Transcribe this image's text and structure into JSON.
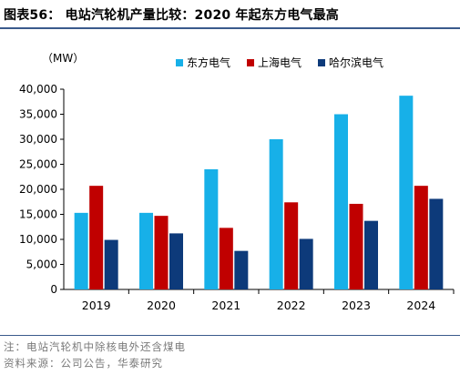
{
  "title": "图表56： 电站汽轮机产量比较：2020 年起东方电气最高",
  "unit_label": "（MW）",
  "notes": {
    "note1": "注：电站汽轮机中除核电外还含煤电",
    "note2": "资料来源：公司公告，华泰研究"
  },
  "colors": {
    "dongfang": "#17b0e8",
    "shanghai": "#c00000",
    "harbin": "#0d3a7a",
    "rule": "#3a5a8c"
  },
  "chart_data": {
    "type": "bar",
    "categories": [
      "2019",
      "2020",
      "2021",
      "2022",
      "2023",
      "2024"
    ],
    "series": [
      {
        "name": "东方电气",
        "values": [
          15300,
          15300,
          24000,
          30000,
          35000,
          38700
        ]
      },
      {
        "name": "上海电气",
        "values": [
          20700,
          14700,
          12300,
          17400,
          17100,
          20700
        ]
      },
      {
        "name": "哈尔滨电气",
        "values": [
          9900,
          11200,
          7700,
          10100,
          13700,
          18100
        ]
      }
    ],
    "yticks": [
      "0",
      "5,000",
      "10,000",
      "15,000",
      "20,000",
      "25,000",
      "30,000",
      "35,000",
      "40,000"
    ],
    "ylim": [
      0,
      40000
    ],
    "grid": false,
    "legend": "top-right"
  }
}
